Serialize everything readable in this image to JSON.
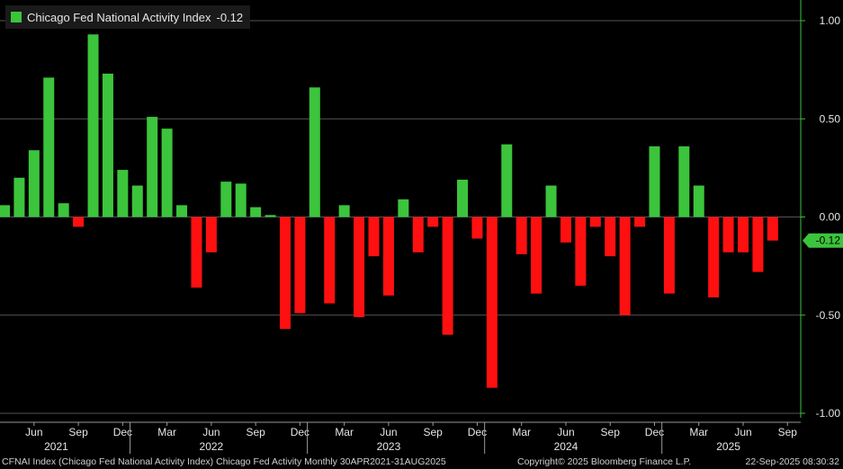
{
  "legend": {
    "label": "Chicago Fed National Activity Index",
    "last_value": "-0.12",
    "color": "#3cc43c"
  },
  "colors": {
    "positive": "#3cc43c",
    "negative": "#ff1010",
    "axis": "#3cc43c",
    "grid": "#555555",
    "text": "#e6e6e6"
  },
  "footer": {
    "source": "CFNAI Index (Chicago Fed National Activity Index) Chicago Fed Activity  Monthly 30APR2021-31AUG2025",
    "copyright": "Copyright© 2025 Bloomberg Finance L.P.",
    "timestamp": "22-Sep-2025 08:30:32"
  },
  "chart_data": {
    "type": "bar",
    "title": "",
    "ylim": [
      -1.0,
      1.0
    ],
    "yticks": [
      1.0,
      0.5,
      0.0,
      -0.5,
      -1.0
    ],
    "ytick_labels": [
      "1.00",
      "0.50",
      "0.00",
      "-0.50",
      "-1.00"
    ],
    "last_value_label": "-0.12",
    "month_labels": [
      {
        "index": 2,
        "label": "Jun"
      },
      {
        "index": 5,
        "label": "Sep"
      },
      {
        "index": 8,
        "label": "Dec"
      },
      {
        "index": 11,
        "label": "Mar"
      },
      {
        "index": 14,
        "label": "Jun"
      },
      {
        "index": 17,
        "label": "Sep"
      },
      {
        "index": 20,
        "label": "Dec"
      },
      {
        "index": 23,
        "label": "Mar"
      },
      {
        "index": 26,
        "label": "Jun"
      },
      {
        "index": 29,
        "label": "Sep"
      },
      {
        "index": 32,
        "label": "Dec"
      },
      {
        "index": 35,
        "label": "Mar"
      },
      {
        "index": 38,
        "label": "Jun"
      },
      {
        "index": 41,
        "label": "Sep"
      },
      {
        "index": 44,
        "label": "Dec"
      },
      {
        "index": 47,
        "label": "Mar"
      },
      {
        "index": 50,
        "label": "Jun"
      },
      {
        "index": 53,
        "label": "Sep"
      }
    ],
    "year_labels": [
      {
        "index": 3.5,
        "label": "2021"
      },
      {
        "index": 14,
        "label": "2022"
      },
      {
        "index": 26,
        "label": "2023"
      },
      {
        "index": 38,
        "label": "2024"
      },
      {
        "index": 49,
        "label": "2025"
      }
    ],
    "year_separators": [
      8.5,
      20.5,
      32.5,
      44.5
    ],
    "categories": [
      "2021-04",
      "2021-05",
      "2021-06",
      "2021-07",
      "2021-08",
      "2021-09",
      "2021-10",
      "2021-11",
      "2021-12",
      "2022-01",
      "2022-02",
      "2022-03",
      "2022-04",
      "2022-05",
      "2022-06",
      "2022-07",
      "2022-08",
      "2022-09",
      "2022-10",
      "2022-11",
      "2022-12",
      "2023-01",
      "2023-02",
      "2023-03",
      "2023-04",
      "2023-05",
      "2023-06",
      "2023-07",
      "2023-08",
      "2023-09",
      "2023-10",
      "2023-11",
      "2023-12",
      "2024-01",
      "2024-02",
      "2024-03",
      "2024-04",
      "2024-05",
      "2024-06",
      "2024-07",
      "2024-08",
      "2024-09",
      "2024-10",
      "2024-11",
      "2024-12",
      "2025-01",
      "2025-02",
      "2025-03",
      "2025-04",
      "2025-05",
      "2025-06",
      "2025-07",
      "2025-08"
    ],
    "values": [
      0.06,
      0.2,
      0.34,
      0.71,
      0.07,
      -0.05,
      0.93,
      0.73,
      0.24,
      0.16,
      0.51,
      0.45,
      0.06,
      -0.36,
      -0.18,
      0.18,
      0.17,
      0.05,
      0.01,
      -0.57,
      -0.49,
      0.66,
      -0.44,
      0.06,
      -0.51,
      -0.2,
      -0.4,
      0.09,
      -0.18,
      -0.05,
      -0.6,
      0.19,
      -0.11,
      -0.87,
      0.37,
      -0.19,
      -0.39,
      0.16,
      -0.13,
      -0.35,
      -0.05,
      -0.2,
      -0.5,
      -0.05,
      0.36,
      -0.39,
      0.36,
      0.16,
      -0.41,
      -0.18,
      -0.18,
      -0.28,
      -0.12
    ]
  }
}
